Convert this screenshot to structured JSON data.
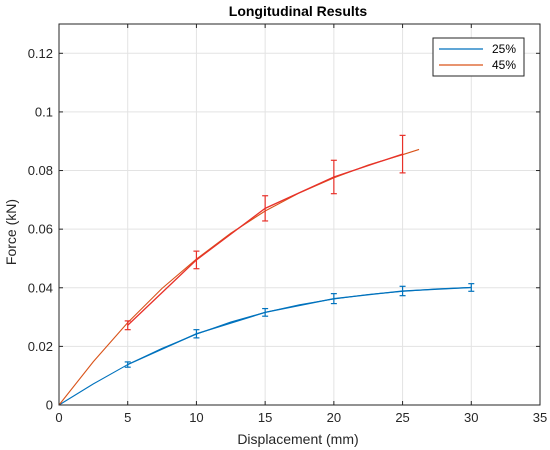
{
  "chart_data": {
    "type": "line",
    "title": "Longitudinal Results",
    "xlabel": "Displacement (mm)",
    "ylabel": "Force (kN)",
    "xlim": [
      0,
      35
    ],
    "ylim": [
      0,
      0.13
    ],
    "x_ticks": [
      0,
      5,
      10,
      15,
      20,
      25,
      30,
      35
    ],
    "y_ticks": [
      0,
      0.02,
      0.04,
      0.06,
      0.08,
      0.1,
      0.12
    ],
    "x_tick_labels": [
      "0",
      "5",
      "10",
      "15",
      "20",
      "25",
      "30",
      "35"
    ],
    "y_tick_labels": [
      "0",
      "0.02",
      "0.04",
      "0.06",
      "0.08",
      "0.1",
      "0.12"
    ],
    "grid": true,
    "legend_position": "top-right",
    "series": [
      {
        "name": "25%",
        "color": "#0072BD",
        "fit_color": "#0072BD",
        "fit_x": [
          0,
          2.5,
          5,
          7.5,
          10,
          12.5,
          15,
          17.5,
          20,
          22.5,
          25,
          27.5,
          30
        ],
        "fit_y": [
          0,
          0.0072,
          0.0138,
          0.0193,
          0.0242,
          0.0283,
          0.0316,
          0.0342,
          0.0362,
          0.0377,
          0.0388,
          0.0396,
          0.0401
        ],
        "points": [
          {
            "x": 5,
            "y": 0.0138,
            "err": 0.0009
          },
          {
            "x": 10,
            "y": 0.0243,
            "err": 0.0014
          },
          {
            "x": 15,
            "y": 0.0316,
            "err": 0.0013
          },
          {
            "x": 20,
            "y": 0.0363,
            "err": 0.0017
          },
          {
            "x": 25,
            "y": 0.0389,
            "err": 0.0016
          },
          {
            "x": 30,
            "y": 0.0401,
            "err": 0.0013
          }
        ]
      },
      {
        "name": "45%",
        "color": "#D95319",
        "fit_color": "#D95319",
        "fit_x": [
          0,
          2.5,
          5,
          7.5,
          10,
          12.5,
          15,
          17.5,
          20,
          22.5,
          25,
          26.2
        ],
        "fit_y": [
          0,
          0.0148,
          0.0281,
          0.0398,
          0.0498,
          0.0586,
          0.0662,
          0.0724,
          0.0775,
          0.0819,
          0.0854,
          0.0872
        ],
        "points_color": "#E8312A",
        "points": [
          {
            "x": 5,
            "y": 0.0272,
            "err": 0.0015
          },
          {
            "x": 10,
            "y": 0.0495,
            "err": 0.003
          },
          {
            "x": 15,
            "y": 0.0671,
            "err": 0.0043
          },
          {
            "x": 20,
            "y": 0.0778,
            "err": 0.0057
          },
          {
            "x": 25,
            "y": 0.0856,
            "err": 0.0064
          }
        ]
      }
    ]
  }
}
